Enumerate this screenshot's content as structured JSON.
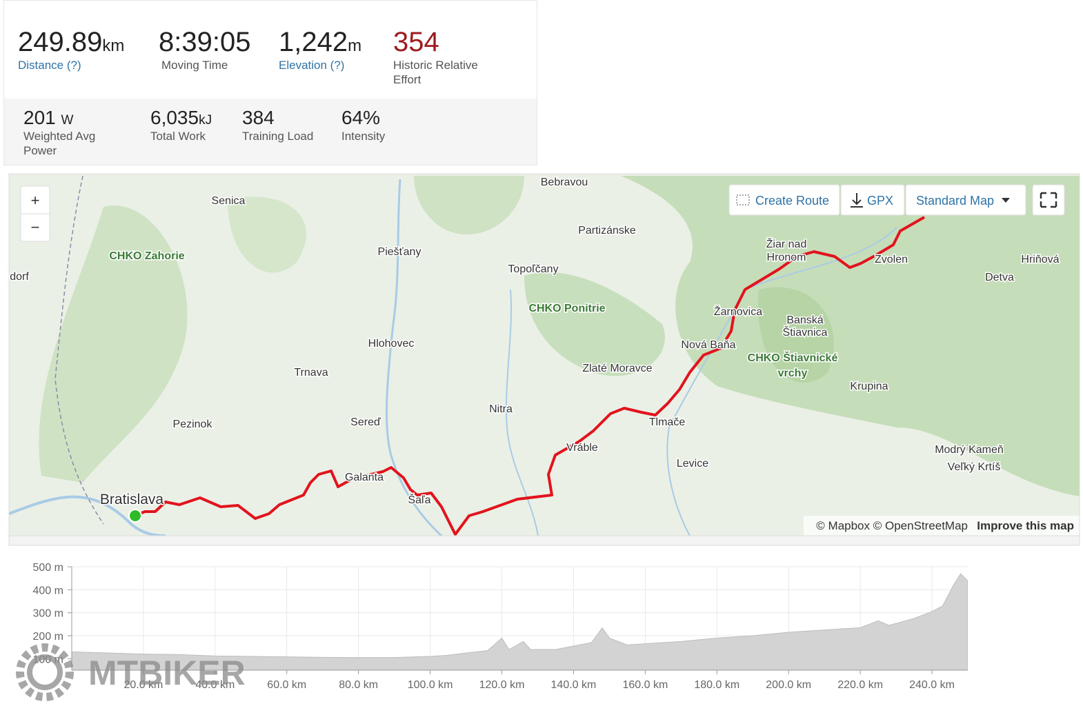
{
  "stats": {
    "primary": [
      {
        "value": "249.89",
        "unit": "km",
        "label": "Distance (?)"
      },
      {
        "value": "8:39:05",
        "label": "Moving Time"
      },
      {
        "value": "1,242",
        "unit": "m",
        "label": "Elevation (?)"
      },
      {
        "value": "354",
        "label": "Historic Relative Effort"
      }
    ],
    "secondary": [
      {
        "value": "201",
        "unit": "W",
        "label": "Weighted Avg Power"
      },
      {
        "value": "6,035",
        "unit": "kJ",
        "label": "Total Work"
      },
      {
        "value": "384",
        "label": "Training Load"
      },
      {
        "value": "64%",
        "label": "Intensity"
      }
    ]
  },
  "map": {
    "controls": {
      "zoom_in": "+",
      "zoom_out": "−",
      "create_route": "Create Route",
      "gpx": "GPX",
      "map_style": "Standard Map"
    },
    "labels": [
      "Bebravou",
      "Senica",
      "CHKO Zahorie",
      "dorf",
      "Piešťany",
      "Partizánske",
      "Topoľčany",
      "Žiar nad",
      "Hronom",
      "Zvolen",
      "Hriňová",
      "Detva",
      "CHKO Ponitrie",
      "Žarnovica",
      "Banská",
      "Štiavnica",
      "Hlohovec",
      "Nová Baňa",
      "CHKO Štiavnické",
      "vrchy",
      "Trnava",
      "Zlaté Moravce",
      "Krupina",
      "Nitra",
      "Sereď",
      "Pezinok",
      "Tlmače",
      "Vráble",
      "Modrý Kameň",
      "Veľký Krtíš",
      "Levice",
      "Galanta",
      "Bratislava",
      "Šaľa"
    ],
    "attribution": "© Mapbox © OpenStreetMap",
    "improve": "Improve this map"
  },
  "elevation": {
    "type": "area",
    "x": [
      0,
      10,
      20,
      30,
      40,
      50,
      60,
      70,
      80,
      90,
      100,
      105,
      110,
      116,
      120,
      122,
      126,
      128,
      135,
      140,
      145,
      148,
      150,
      155,
      160,
      170,
      180,
      190,
      200,
      210,
      220,
      225,
      228,
      235,
      240,
      243,
      246,
      248,
      249.89
    ],
    "values": [
      130,
      125,
      120,
      118,
      112,
      110,
      108,
      106,
      105,
      105,
      110,
      115,
      125,
      135,
      190,
      140,
      175,
      140,
      140,
      155,
      170,
      234,
      190,
      160,
      165,
      175,
      190,
      200,
      215,
      225,
      235,
      265,
      245,
      275,
      305,
      330,
      420,
      470,
      440
    ],
    "xlim": [
      0,
      250
    ],
    "ylim": [
      50,
      500
    ],
    "xticks": [
      {
        "value": 20,
        "label": "20.0 km"
      },
      {
        "value": 40,
        "label": "40.0 km"
      },
      {
        "value": 60,
        "label": "60.0 km"
      },
      {
        "value": 80,
        "label": "80.0 km"
      },
      {
        "value": 100,
        "label": "100.0 km"
      },
      {
        "value": 120,
        "label": "120.0 km"
      },
      {
        "value": 140,
        "label": "140.0 km"
      },
      {
        "value": 160,
        "label": "160.0 km"
      },
      {
        "value": 180,
        "label": "180.0 km"
      },
      {
        "value": 200,
        "label": "200.0 km"
      },
      {
        "value": 220,
        "label": "220.0 km"
      },
      {
        "value": 240,
        "label": "240.0 km"
      }
    ],
    "yticks": [
      {
        "value": 100,
        "label": "100 m"
      },
      {
        "value": 200,
        "label": "200 m"
      },
      {
        "value": 300,
        "label": "300 m"
      },
      {
        "value": 400,
        "label": "400 m"
      },
      {
        "value": 500,
        "label": "500 m"
      }
    ],
    "color": "#d3d3d3"
  },
  "watermark": "MTBIKER"
}
